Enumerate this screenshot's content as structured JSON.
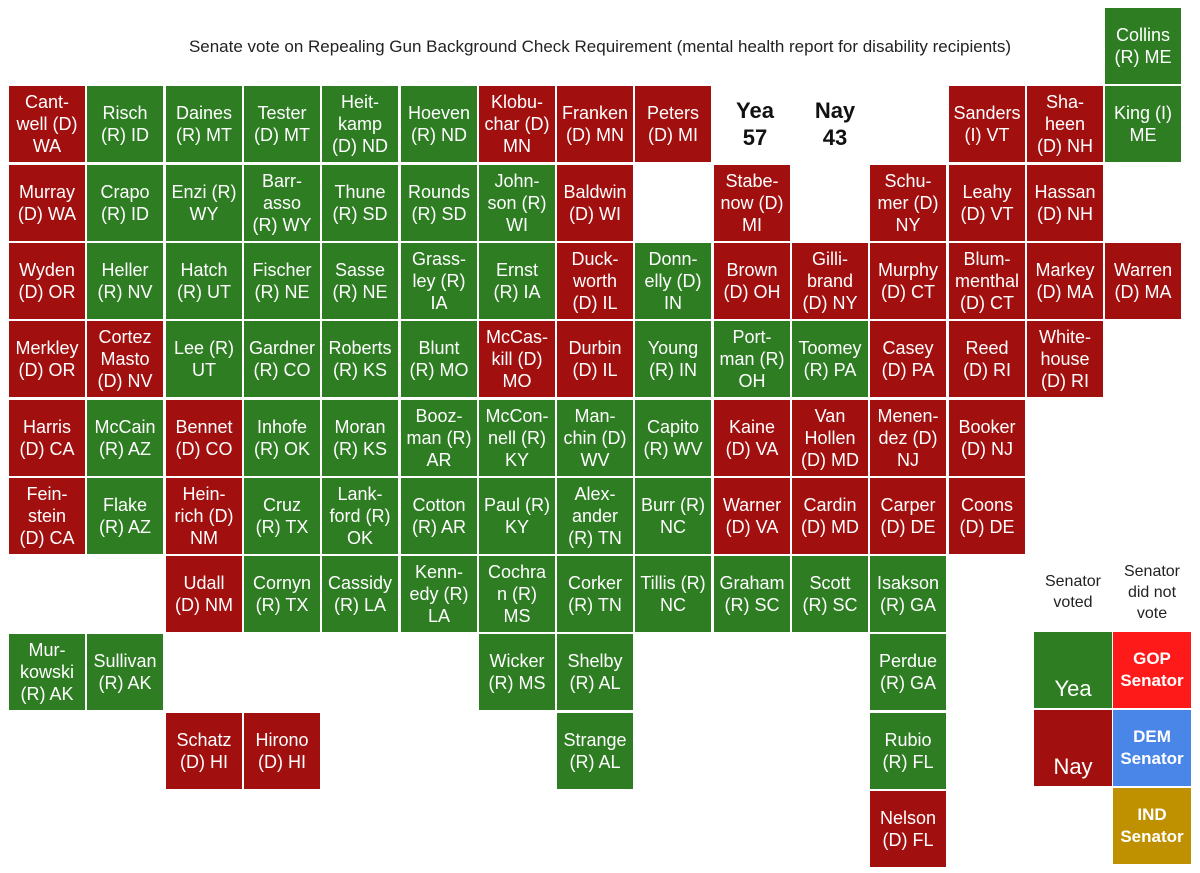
{
  "title": "Senate vote on Repealing Gun Background Check Requirement (mental health report for disability recipients)",
  "colors": {
    "yea": "#2e7d23",
    "nay": "#a20f0f",
    "gop": "#ff1a1a",
    "dem": "#4a86e8",
    "ind": "#bf9000"
  },
  "tally": {
    "yea_label": "Yea",
    "yea_count": "57",
    "nay_label": "Nay",
    "nay_count": "43"
  },
  "legend": {
    "voted_header": [
      "Senator",
      "voted"
    ],
    "not_voted_header": [
      "Senator",
      "did not",
      "vote"
    ],
    "yea": "Yea",
    "nay": "Nay",
    "gop": [
      "GOP",
      "Senator"
    ],
    "dem": [
      "DEM",
      "Senator"
    ],
    "ind": [
      "IND",
      "Senator"
    ]
  },
  "senators": [
    {
      "row": 0,
      "col": 14,
      "lines": [
        "Collins",
        "(R) ME"
      ],
      "vote": "yea"
    },
    {
      "row": 1,
      "col": 0,
      "lines": [
        "Cant-",
        "well (D)",
        "WA"
      ],
      "vote": "nay"
    },
    {
      "row": 1,
      "col": 1,
      "lines": [
        "Risch",
        "(R) ID"
      ],
      "vote": "yea"
    },
    {
      "row": 1,
      "col": 2,
      "lines": [
        "Daines",
        "(R) MT"
      ],
      "vote": "yea"
    },
    {
      "row": 1,
      "col": 3,
      "lines": [
        "Tester",
        "(D) MT"
      ],
      "vote": "yea"
    },
    {
      "row": 1,
      "col": 4,
      "lines": [
        "Heit-",
        "kamp",
        "(D) ND"
      ],
      "vote": "yea"
    },
    {
      "row": 1,
      "col": 5,
      "lines": [
        "Hoeven",
        "(R) ND"
      ],
      "vote": "yea"
    },
    {
      "row": 1,
      "col": 6,
      "lines": [
        "Klobu-",
        "char (D)",
        "MN"
      ],
      "vote": "nay"
    },
    {
      "row": 1,
      "col": 7,
      "lines": [
        "Franken",
        "(D) MN"
      ],
      "vote": "nay"
    },
    {
      "row": 1,
      "col": 8,
      "lines": [
        "Peters",
        "(D) MI"
      ],
      "vote": "nay"
    },
    {
      "row": 1,
      "col": 12,
      "lines": [
        "Sanders",
        "(I) VT"
      ],
      "vote": "nay"
    },
    {
      "row": 1,
      "col": 13,
      "lines": [
        "Sha-",
        "heen",
        "(D) NH"
      ],
      "vote": "nay"
    },
    {
      "row": 1,
      "col": 14,
      "lines": [
        "King (I)",
        "ME"
      ],
      "vote": "yea"
    },
    {
      "row": 2,
      "col": 0,
      "lines": [
        "Murray",
        "(D) WA"
      ],
      "vote": "nay"
    },
    {
      "row": 2,
      "col": 1,
      "lines": [
        "Crapo",
        "(R) ID"
      ],
      "vote": "yea"
    },
    {
      "row": 2,
      "col": 2,
      "lines": [
        "Enzi (R)",
        "WY"
      ],
      "vote": "yea"
    },
    {
      "row": 2,
      "col": 3,
      "lines": [
        "Barr-",
        "asso",
        "(R) WY"
      ],
      "vote": "yea"
    },
    {
      "row": 2,
      "col": 4,
      "lines": [
        "Thune",
        "(R) SD"
      ],
      "vote": "yea"
    },
    {
      "row": 2,
      "col": 5,
      "lines": [
        "Rounds",
        "(R) SD"
      ],
      "vote": "yea"
    },
    {
      "row": 2,
      "col": 6,
      "lines": [
        "John-",
        "son (R)",
        "WI"
      ],
      "vote": "yea"
    },
    {
      "row": 2,
      "col": 7,
      "lines": [
        "Baldwin",
        "(D) WI"
      ],
      "vote": "nay"
    },
    {
      "row": 2,
      "col": 9,
      "lines": [
        "Stabe-",
        "now (D)",
        "MI"
      ],
      "vote": "nay"
    },
    {
      "row": 2,
      "col": 11,
      "lines": [
        "Schu-",
        "mer (D)",
        "NY"
      ],
      "vote": "nay"
    },
    {
      "row": 2,
      "col": 12,
      "lines": [
        "Leahy",
        "(D) VT"
      ],
      "vote": "nay"
    },
    {
      "row": 2,
      "col": 13,
      "lines": [
        "Hassan",
        "(D) NH"
      ],
      "vote": "nay"
    },
    {
      "row": 3,
      "col": 0,
      "lines": [
        "Wyden",
        "(D) OR"
      ],
      "vote": "nay"
    },
    {
      "row": 3,
      "col": 1,
      "lines": [
        "Heller",
        "(R) NV"
      ],
      "vote": "yea"
    },
    {
      "row": 3,
      "col": 2,
      "lines": [
        "Hatch",
        "(R) UT"
      ],
      "vote": "yea"
    },
    {
      "row": 3,
      "col": 3,
      "lines": [
        "Fischer",
        "(R) NE"
      ],
      "vote": "yea"
    },
    {
      "row": 3,
      "col": 4,
      "lines": [
        "Sasse",
        "(R) NE"
      ],
      "vote": "yea"
    },
    {
      "row": 3,
      "col": 5,
      "lines": [
        "Grass-",
        "ley (R)",
        "IA"
      ],
      "vote": "yea"
    },
    {
      "row": 3,
      "col": 6,
      "lines": [
        "Ernst",
        "(R) IA"
      ],
      "vote": "yea"
    },
    {
      "row": 3,
      "col": 7,
      "lines": [
        "Duck-",
        "worth",
        "(D) IL"
      ],
      "vote": "nay"
    },
    {
      "row": 3,
      "col": 8,
      "lines": [
        "Donn-",
        "elly (D)",
        "IN"
      ],
      "vote": "yea"
    },
    {
      "row": 3,
      "col": 9,
      "lines": [
        "Brown",
        "(D) OH"
      ],
      "vote": "nay"
    },
    {
      "row": 3,
      "col": 10,
      "lines": [
        "Gilli-",
        "brand",
        "(D) NY"
      ],
      "vote": "nay"
    },
    {
      "row": 3,
      "col": 11,
      "lines": [
        "Murphy",
        "(D) CT"
      ],
      "vote": "nay"
    },
    {
      "row": 3,
      "col": 12,
      "lines": [
        "Blum-",
        "menthal",
        "(D) CT"
      ],
      "vote": "nay"
    },
    {
      "row": 3,
      "col": 13,
      "lines": [
        "Markey",
        "(D) MA"
      ],
      "vote": "nay"
    },
    {
      "row": 3,
      "col": 14,
      "lines": [
        "Warren",
        "(D) MA"
      ],
      "vote": "nay"
    },
    {
      "row": 4,
      "col": 0,
      "lines": [
        "Merkley",
        "(D) OR"
      ],
      "vote": "nay"
    },
    {
      "row": 4,
      "col": 1,
      "lines": [
        "Cortez",
        "Masto",
        "(D) NV"
      ],
      "vote": "nay"
    },
    {
      "row": 4,
      "col": 2,
      "lines": [
        "Lee (R)",
        "UT"
      ],
      "vote": "yea"
    },
    {
      "row": 4,
      "col": 3,
      "lines": [
        "Gardner",
        "(R) CO"
      ],
      "vote": "yea"
    },
    {
      "row": 4,
      "col": 4,
      "lines": [
        "Roberts",
        "(R) KS"
      ],
      "vote": "yea"
    },
    {
      "row": 4,
      "col": 5,
      "lines": [
        "Blunt",
        "(R) MO"
      ],
      "vote": "yea"
    },
    {
      "row": 4,
      "col": 6,
      "lines": [
        "McCas-",
        "kill (D)",
        "MO"
      ],
      "vote": "nay"
    },
    {
      "row": 4,
      "col": 7,
      "lines": [
        "Durbin",
        "(D) IL"
      ],
      "vote": "nay"
    },
    {
      "row": 4,
      "col": 8,
      "lines": [
        "Young",
        "(R) IN"
      ],
      "vote": "yea"
    },
    {
      "row": 4,
      "col": 9,
      "lines": [
        "Port-",
        "man (R)",
        "OH"
      ],
      "vote": "yea"
    },
    {
      "row": 4,
      "col": 10,
      "lines": [
        "Toomey",
        "(R) PA"
      ],
      "vote": "yea"
    },
    {
      "row": 4,
      "col": 11,
      "lines": [
        "Casey",
        "(D) PA"
      ],
      "vote": "nay"
    },
    {
      "row": 4,
      "col": 12,
      "lines": [
        "Reed",
        "(D) RI"
      ],
      "vote": "nay"
    },
    {
      "row": 4,
      "col": 13,
      "lines": [
        "White-",
        "house",
        "(D) RI"
      ],
      "vote": "nay"
    },
    {
      "row": 5,
      "col": 0,
      "lines": [
        "Harris",
        "(D) CA"
      ],
      "vote": "nay"
    },
    {
      "row": 5,
      "col": 1,
      "lines": [
        "McCain",
        "(R) AZ"
      ],
      "vote": "yea"
    },
    {
      "row": 5,
      "col": 2,
      "lines": [
        "Bennet",
        "(D) CO"
      ],
      "vote": "nay"
    },
    {
      "row": 5,
      "col": 3,
      "lines": [
        "Inhofe",
        "(R) OK"
      ],
      "vote": "yea"
    },
    {
      "row": 5,
      "col": 4,
      "lines": [
        "Moran",
        "(R) KS"
      ],
      "vote": "yea"
    },
    {
      "row": 5,
      "col": 5,
      "lines": [
        "Booz-",
        "man (R)",
        "AR"
      ],
      "vote": "yea"
    },
    {
      "row": 5,
      "col": 6,
      "lines": [
        "McCon-",
        "nell (R)",
        "KY"
      ],
      "vote": "yea"
    },
    {
      "row": 5,
      "col": 7,
      "lines": [
        "Man-",
        "chin (D)",
        "WV"
      ],
      "vote": "yea"
    },
    {
      "row": 5,
      "col": 8,
      "lines": [
        "Capito",
        "(R) WV"
      ],
      "vote": "yea"
    },
    {
      "row": 5,
      "col": 9,
      "lines": [
        "Kaine",
        "(D) VA"
      ],
      "vote": "nay"
    },
    {
      "row": 5,
      "col": 10,
      "lines": [
        "Van",
        "Hollen",
        "(D) MD"
      ],
      "vote": "nay"
    },
    {
      "row": 5,
      "col": 11,
      "lines": [
        "Menen-",
        "dez (D)",
        "NJ"
      ],
      "vote": "nay"
    },
    {
      "row": 5,
      "col": 12,
      "lines": [
        "Booker",
        "(D) NJ"
      ],
      "vote": "nay"
    },
    {
      "row": 6,
      "col": 0,
      "lines": [
        "Fein-",
        "stein",
        "(D) CA"
      ],
      "vote": "nay"
    },
    {
      "row": 6,
      "col": 1,
      "lines": [
        "Flake",
        "(R) AZ"
      ],
      "vote": "yea"
    },
    {
      "row": 6,
      "col": 2,
      "lines": [
        "Hein-",
        "rich (D)",
        "NM"
      ],
      "vote": "nay"
    },
    {
      "row": 6,
      "col": 3,
      "lines": [
        "Cruz",
        "(R) TX"
      ],
      "vote": "yea"
    },
    {
      "row": 6,
      "col": 4,
      "lines": [
        "Lank-",
        "ford (R)",
        "OK"
      ],
      "vote": "yea"
    },
    {
      "row": 6,
      "col": 5,
      "lines": [
        "Cotton",
        "(R) AR"
      ],
      "vote": "yea"
    },
    {
      "row": 6,
      "col": 6,
      "lines": [
        "Paul (R)",
        "KY"
      ],
      "vote": "yea"
    },
    {
      "row": 6,
      "col": 7,
      "lines": [
        "Alex-",
        "ander",
        "(R) TN"
      ],
      "vote": "yea"
    },
    {
      "row": 6,
      "col": 8,
      "lines": [
        "Burr (R)",
        "NC"
      ],
      "vote": "yea"
    },
    {
      "row": 6,
      "col": 9,
      "lines": [
        "Warner",
        "(D) VA"
      ],
      "vote": "nay"
    },
    {
      "row": 6,
      "col": 10,
      "lines": [
        "Cardin",
        "(D) MD"
      ],
      "vote": "nay"
    },
    {
      "row": 6,
      "col": 11,
      "lines": [
        "Carper",
        "(D) DE"
      ],
      "vote": "nay"
    },
    {
      "row": 6,
      "col": 12,
      "lines": [
        "Coons",
        "(D) DE"
      ],
      "vote": "nay"
    },
    {
      "row": 7,
      "col": 2,
      "lines": [
        "Udall",
        "(D) NM"
      ],
      "vote": "nay"
    },
    {
      "row": 7,
      "col": 3,
      "lines": [
        "Cornyn",
        "(R) TX"
      ],
      "vote": "yea"
    },
    {
      "row": 7,
      "col": 4,
      "lines": [
        "Cassidy",
        "(R) LA"
      ],
      "vote": "yea"
    },
    {
      "row": 7,
      "col": 5,
      "lines": [
        "Kenn-",
        "edy (R)",
        "LA"
      ],
      "vote": "yea"
    },
    {
      "row": 7,
      "col": 6,
      "lines": [
        "Cochra",
        "n (R)",
        "MS"
      ],
      "vote": "yea"
    },
    {
      "row": 7,
      "col": 7,
      "lines": [
        "Corker",
        "(R) TN"
      ],
      "vote": "yea"
    },
    {
      "row": 7,
      "col": 8,
      "lines": [
        "Tillis (R)",
        "NC"
      ],
      "vote": "yea"
    },
    {
      "row": 7,
      "col": 9,
      "lines": [
        "Graham",
        "(R) SC"
      ],
      "vote": "yea"
    },
    {
      "row": 7,
      "col": 10,
      "lines": [
        "Scott",
        "(R) SC"
      ],
      "vote": "yea"
    },
    {
      "row": 7,
      "col": 11,
      "lines": [
        "Isakson",
        "(R) GA"
      ],
      "vote": "yea"
    },
    {
      "row": 8,
      "col": 0,
      "lines": [
        "Mur-",
        "kowski",
        "(R) AK"
      ],
      "vote": "yea"
    },
    {
      "row": 8,
      "col": 1,
      "lines": [
        "Sullivan",
        "(R) AK"
      ],
      "vote": "yea"
    },
    {
      "row": 8,
      "col": 6,
      "lines": [
        "Wicker",
        "(R) MS"
      ],
      "vote": "yea"
    },
    {
      "row": 8,
      "col": 7,
      "lines": [
        "Shelby",
        "(R) AL"
      ],
      "vote": "yea"
    },
    {
      "row": 8,
      "col": 11,
      "lines": [
        "Perdue",
        "(R) GA"
      ],
      "vote": "yea"
    },
    {
      "row": 9,
      "col": 2,
      "lines": [
        "Schatz",
        "(D) HI"
      ],
      "vote": "nay"
    },
    {
      "row": 9,
      "col": 3,
      "lines": [
        "Hirono",
        "(D) HI"
      ],
      "vote": "nay"
    },
    {
      "row": 9,
      "col": 7,
      "lines": [
        "Strange",
        "(R) AL"
      ],
      "vote": "yea"
    },
    {
      "row": 9,
      "col": 11,
      "lines": [
        "Rubio",
        "(R) FL"
      ],
      "vote": "yea"
    },
    {
      "row": 10,
      "col": 11,
      "lines": [
        "Nelson",
        "(D) FL"
      ],
      "vote": "nay"
    }
  ]
}
